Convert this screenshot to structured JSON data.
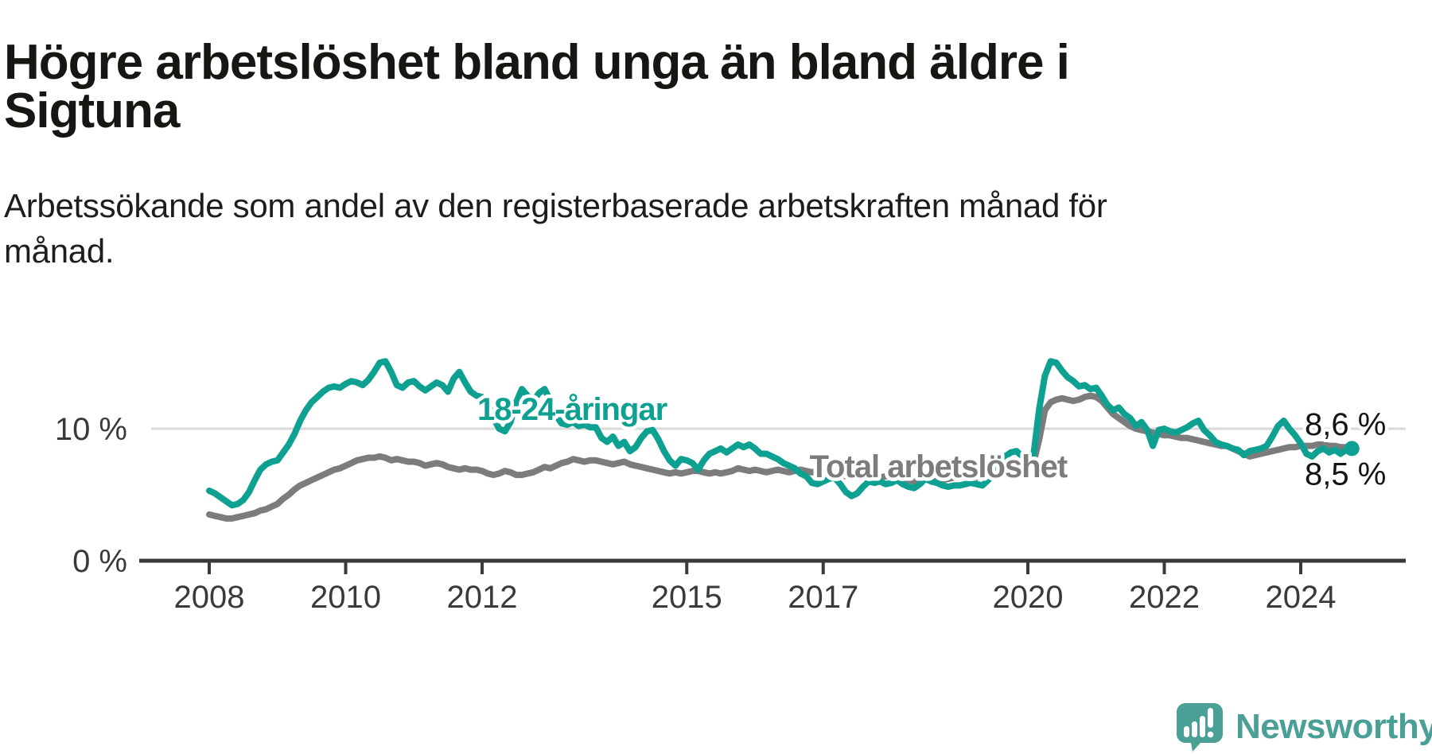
{
  "header": {
    "title_lines": [
      "Högre arbetslöshet bland unga än bland äldre i",
      "Sigtuna"
    ],
    "subtitle_lines": [
      "Arbetssökande som andel av den registerbaserade arbetskraften månad för",
      "månad."
    ]
  },
  "footer": {
    "brand": "Newsworthy",
    "logo_icon": "speech-bubble-bar-chart-icon",
    "brand_color": "#4aa096"
  },
  "chart_data": {
    "type": "line",
    "title": "Högre arbetslöshet bland unga än bland äldre i Sigtuna",
    "subtitle": "Arbetssökande som andel av den registerbaserade arbetskraften månad för månad.",
    "unit": "%",
    "x": {
      "frequency": "monthly",
      "start_year": 2008,
      "start_month": 1,
      "end_year": 2024,
      "end_month": 10
    },
    "x_ticks": [
      {
        "year": 2008,
        "label": "2008"
      },
      {
        "year": 2010,
        "label": "2010"
      },
      {
        "year": 2012,
        "label": "2012"
      },
      {
        "year": 2015,
        "label": "2015"
      },
      {
        "year": 2017,
        "label": "2017"
      },
      {
        "year": 2020,
        "label": "2020"
      },
      {
        "year": 2022,
        "label": "2022"
      },
      {
        "year": 2024,
        "label": "2024"
      }
    ],
    "y_ticks": [
      {
        "value": 0,
        "label": "0 %"
      },
      {
        "value": 10,
        "label": "10 %"
      }
    ],
    "ylim": [
      0,
      19
    ],
    "grid": "horizontal-line-at-10-only",
    "legend_position": "inline-labels-on-chart",
    "axis_color": "#3a3a3a",
    "grid_color": "#d9d9d9",
    "tick_label_color": "#3a3a3a",
    "end_label_color": "#141414",
    "series": [
      {
        "name": "18-24-åringar",
        "color": "#0ea192",
        "end_label": "8,5 %",
        "end_label_pct": 5.75,
        "end_marker": true,
        "label_anchor": {
          "x_year": 2011.93,
          "pct": 10.66
        },
        "values": [
          5.3,
          5.1,
          4.8,
          4.5,
          4.2,
          4.3,
          4.6,
          5.2,
          6.1,
          6.9,
          7.3,
          7.5,
          7.6,
          8.2,
          8.8,
          9.6,
          10.6,
          11.4,
          12.0,
          12.4,
          12.8,
          13.1,
          13.2,
          13.1,
          13.4,
          13.6,
          13.5,
          13.3,
          13.7,
          14.3,
          15.0,
          15.1,
          14.3,
          13.3,
          13.1,
          13.5,
          13.6,
          13.2,
          12.9,
          13.2,
          13.5,
          13.3,
          12.8,
          13.8,
          14.3,
          13.5,
          12.8,
          12.5,
          12.4,
          12.0,
          10.8,
          10.0,
          9.8,
          10.5,
          12.0,
          13.0,
          12.5,
          12.1,
          12.7,
          13.0,
          12.1,
          11.0,
          10.4,
          10.3,
          10.5,
          10.2,
          10.3,
          10.1,
          10.1,
          9.3,
          9.0,
          9.4,
          8.7,
          9.0,
          8.3,
          8.6,
          9.3,
          9.8,
          9.9,
          9.2,
          8.3,
          7.6,
          7.2,
          7.7,
          7.6,
          7.4,
          6.9,
          7.6,
          8.1,
          8.3,
          8.5,
          8.2,
          8.5,
          8.8,
          8.6,
          8.8,
          8.5,
          8.1,
          8.1,
          7.9,
          7.7,
          7.4,
          7.2,
          7.0,
          6.6,
          6.4,
          5.9,
          5.8,
          6.0,
          6.2,
          6.3,
          5.8,
          5.2,
          4.9,
          5.1,
          5.6,
          6.0,
          5.9,
          6.0,
          5.8,
          5.9,
          6.1,
          5.8,
          5.6,
          5.5,
          5.8,
          6.2,
          6.0,
          5.9,
          5.7,
          5.6,
          5.7,
          5.7,
          5.8,
          5.9,
          5.8,
          5.7,
          6.1,
          6.6,
          7.3,
          7.9,
          8.2,
          8.3,
          7.9,
          7.4,
          8.0,
          11.5,
          14.0,
          15.1,
          15.0,
          14.4,
          13.9,
          13.6,
          13.2,
          13.3,
          13.0,
          13.1,
          12.5,
          11.8,
          11.4,
          11.6,
          11.1,
          10.8,
          10.2,
          10.5,
          9.9,
          8.7,
          9.9,
          10.0,
          9.8,
          9.7,
          9.9,
          10.1,
          10.4,
          10.6,
          9.9,
          9.5,
          9.0,
          8.8,
          8.7,
          8.5,
          8.4,
          8.0,
          8.3,
          8.4,
          8.5,
          8.7,
          9.4,
          10.2,
          10.6,
          10.0,
          9.5,
          8.9,
          8.1,
          7.9,
          8.3,
          8.5,
          8.2,
          8.4,
          8.1,
          8.4,
          8.5
        ]
      },
      {
        "name": "Total arbetslöshet",
        "color": "#7c7c7e",
        "end_label": "8,6 %",
        "end_label_pct": 9.53,
        "end_marker": false,
        "label_anchor": {
          "x_year": 2016.8,
          "pct": 6.33
        },
        "values": [
          3.5,
          3.4,
          3.3,
          3.2,
          3.2,
          3.3,
          3.4,
          3.5,
          3.6,
          3.8,
          3.9,
          4.1,
          4.3,
          4.7,
          5.0,
          5.4,
          5.7,
          5.9,
          6.1,
          6.3,
          6.5,
          6.7,
          6.9,
          7.0,
          7.2,
          7.4,
          7.6,
          7.7,
          7.8,
          7.8,
          7.9,
          7.8,
          7.6,
          7.7,
          7.6,
          7.5,
          7.5,
          7.4,
          7.2,
          7.3,
          7.4,
          7.3,
          7.1,
          7.0,
          6.9,
          7.0,
          6.9,
          6.9,
          6.8,
          6.6,
          6.5,
          6.6,
          6.8,
          6.7,
          6.5,
          6.5,
          6.6,
          6.7,
          6.9,
          7.1,
          7.0,
          7.2,
          7.4,
          7.5,
          7.7,
          7.6,
          7.5,
          7.6,
          7.6,
          7.5,
          7.4,
          7.3,
          7.4,
          7.5,
          7.3,
          7.2,
          7.1,
          7.0,
          6.9,
          6.8,
          6.7,
          6.6,
          6.7,
          6.6,
          6.7,
          6.8,
          6.8,
          6.7,
          6.6,
          6.7,
          6.6,
          6.7,
          6.8,
          7.0,
          6.9,
          6.8,
          6.9,
          6.8,
          6.7,
          6.8,
          6.9,
          6.8,
          6.7,
          6.8,
          6.9,
          6.8,
          6.7,
          6.8,
          6.9,
          6.8,
          6.6,
          6.5,
          6.4,
          6.3,
          6.4,
          6.5,
          6.4,
          6.3,
          6.3,
          6.4,
          6.4,
          6.3,
          6.2,
          6.1,
          6.0,
          6.1,
          6.2,
          6.1,
          6.0,
          6.1,
          6.2,
          6.3,
          6.3,
          6.4,
          6.4,
          6.3,
          6.4,
          6.5,
          6.7,
          6.8,
          6.9,
          6.9,
          7.0,
          7.1,
          7.1,
          7.4,
          9.2,
          11.4,
          12.0,
          12.2,
          12.3,
          12.2,
          12.1,
          12.2,
          12.4,
          12.5,
          12.4,
          12.1,
          11.6,
          11.1,
          10.8,
          10.5,
          10.2,
          10.0,
          9.9,
          9.8,
          9.7,
          9.6,
          9.5,
          9.5,
          9.4,
          9.3,
          9.3,
          9.2,
          9.1,
          9.0,
          8.9,
          8.8,
          8.7,
          8.7,
          8.5,
          8.3,
          8.1,
          7.9,
          8.0,
          8.1,
          8.2,
          8.3,
          8.4,
          8.5,
          8.6,
          8.6,
          8.7,
          8.7,
          8.7,
          8.8,
          8.8,
          8.7,
          8.7,
          8.6,
          8.6,
          8.6
        ]
      }
    ]
  }
}
